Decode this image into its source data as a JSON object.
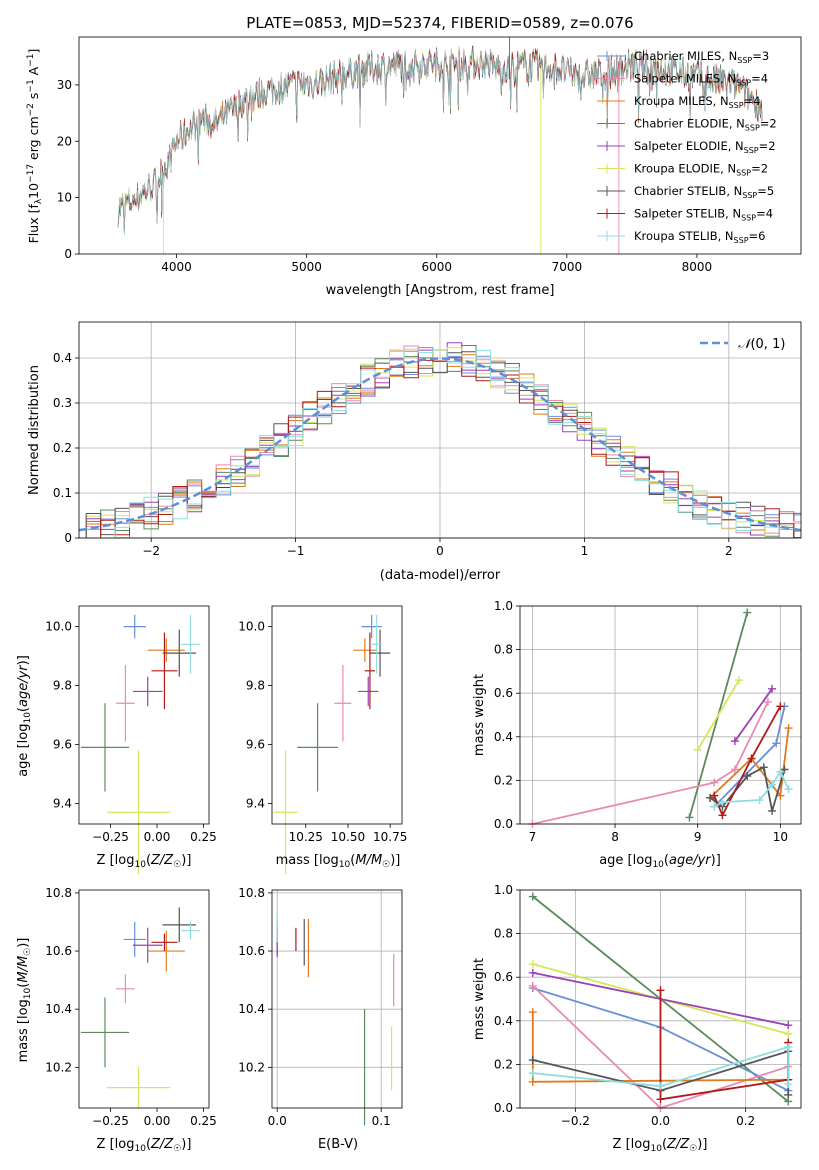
{
  "figure": {
    "title": "PLATE=0853, MJD=52374, FIBERID=0589, z=0.076"
  },
  "colors": {
    "chabrier_miles": "#6a8fd8",
    "salpeter_miles": "#e98ab0",
    "kroupa_miles": "#e07a1f",
    "chabrier_elodie": "#5b8a5b",
    "salpeter_elodie": "#9d3fb5",
    "kroupa_elodie": "#d4e65a",
    "chabrier_stelib": "#555555",
    "salpeter_stelib": "#b01a1a",
    "kroupa_stelib": "#8fdde0",
    "normal": "#5b8fd8"
  },
  "chart_data": [
    {
      "type": "line",
      "title": "PLATE=0853, MJD=52374, FIBERID=0589, z=0.076",
      "xlabel": "wavelength [Angstrom, rest frame]",
      "ylabel": "Flux [f_λ 10^-17 erg cm^-2 s^-1 A^-1]",
      "xlim": [
        3250,
        8800
      ],
      "ylim": [
        0,
        38.5
      ],
      "xticks": [
        4000,
        5000,
        6000,
        7000,
        8000
      ],
      "yticks": [
        0,
        10,
        20,
        30
      ],
      "legend_position": "top-right",
      "legend": [
        {
          "name": "Chabrier MILES",
          "nssp": "3",
          "color_key": "chabrier_miles"
        },
        {
          "name": "Salpeter MILES",
          "nssp": "4",
          "color_key": "salpeter_miles"
        },
        {
          "name": "Kroupa MILES",
          "nssp": "4",
          "color_key": "kroupa_miles"
        },
        {
          "name": "Chabrier ELODIE",
          "nssp": "2",
          "color_key": "chabrier_elodie"
        },
        {
          "name": "Salpeter ELODIE",
          "nssp": "2",
          "color_key": "salpeter_elodie"
        },
        {
          "name": "Kroupa ELODIE",
          "nssp": "2",
          "color_key": "kroupa_elodie"
        },
        {
          "name": "Chabrier STELIB",
          "nssp": "5",
          "color_key": "chabrier_stelib"
        },
        {
          "name": "Salpeter STELIB",
          "nssp": "4",
          "color_key": "salpeter_stelib"
        },
        {
          "name": "Kroupa STELIB",
          "nssp": "6",
          "color_key": "kroupa_stelib"
        }
      ],
      "continuum": [
        [
          3550,
          8
        ],
        [
          3700,
          10
        ],
        [
          3850,
          13
        ],
        [
          3950,
          17
        ],
        [
          4000,
          20
        ],
        [
          4100,
          22
        ],
        [
          4200,
          24
        ],
        [
          4300,
          23
        ],
        [
          4500,
          27
        ],
        [
          4700,
          29
        ],
        [
          4900,
          30
        ],
        [
          5100,
          30.5
        ],
        [
          5300,
          32
        ],
        [
          5500,
          33
        ],
        [
          5700,
          33.5
        ],
        [
          5900,
          34
        ],
        [
          6100,
          33.5
        ],
        [
          6300,
          34
        ],
        [
          6500,
          33
        ],
        [
          6700,
          33.5
        ],
        [
          6900,
          33
        ],
        [
          7100,
          31.5
        ],
        [
          7300,
          32
        ],
        [
          7500,
          33.5
        ],
        [
          7700,
          33
        ],
        [
          7900,
          32
        ],
        [
          8100,
          31
        ],
        [
          8300,
          30
        ],
        [
          8500,
          26
        ]
      ]
    },
    {
      "type": "line",
      "xlabel": "(data-model)/error",
      "ylabel": "Normed distribution",
      "xlim": [
        -2.5,
        2.5
      ],
      "ylim": [
        0,
        0.48
      ],
      "xticks": [
        -2,
        -1,
        0,
        1,
        2
      ],
      "yticks": [
        0.0,
        0.1,
        0.2,
        0.3,
        0.4
      ],
      "legend": "N(0, 1)",
      "legend_position": "top-right",
      "bin_width": 0.1
    },
    {
      "type": "scatter",
      "xlabel": "Z [log10(Z/Z☉)]",
      "ylabel": "age [log10(age/yr)]",
      "xlim": [
        -0.42,
        0.28
      ],
      "ylim": [
        9.33,
        10.07
      ],
      "xticks": [
        "−0.25",
        "0.00",
        "0.25"
      ],
      "yticks": [
        "9.4",
        "9.6",
        "9.8",
        "10.0"
      ],
      "points": [
        {
          "color": "chabrier_miles",
          "x": -0.12,
          "xerr": 0.06,
          "y": 10.0,
          "yerr": 0.04
        },
        {
          "color": "salpeter_miles",
          "x": -0.17,
          "xerr": 0.05,
          "y": 9.74,
          "yerr": 0.13
        },
        {
          "color": "kroupa_miles",
          "x": 0.05,
          "xerr": 0.1,
          "y": 9.92,
          "yerr": 0.04
        },
        {
          "color": "chabrier_elodie",
          "x": -0.28,
          "xerr": 0.13,
          "y": 9.59,
          "yerr": 0.15
        },
        {
          "color": "salpeter_elodie",
          "x": -0.05,
          "xerr": 0.08,
          "y": 9.78,
          "yerr": 0.05
        },
        {
          "color": "kroupa_elodie",
          "x": -0.1,
          "xerr": 0.17,
          "y": 9.37,
          "yerr": 0.21
        },
        {
          "color": "chabrier_stelib",
          "x": 0.12,
          "xerr": 0.09,
          "y": 9.91,
          "yerr": 0.08
        },
        {
          "color": "salpeter_stelib",
          "x": 0.04,
          "xerr": 0.07,
          "y": 9.85,
          "yerr": 0.13
        },
        {
          "color": "kroupa_stelib",
          "x": 0.18,
          "xerr": 0.05,
          "y": 9.94,
          "yerr": 0.1
        }
      ]
    },
    {
      "type": "scatter",
      "xlabel": "mass [log10(M/M☉)]",
      "xlim": [
        10.05,
        10.82
      ],
      "ylim": [
        9.33,
        10.07
      ],
      "xticks": [
        "10.25",
        "10.50",
        "10.75"
      ],
      "yticks": [
        "9.4",
        "9.6",
        "9.8",
        "10.0"
      ],
      "points": [
        {
          "color": "chabrier_miles",
          "x": 10.64,
          "xerr": 0.06,
          "y": 10.0,
          "yerr": 0.04
        },
        {
          "color": "salpeter_miles",
          "x": 10.47,
          "xerr": 0.05,
          "y": 9.74,
          "yerr": 0.13
        },
        {
          "color": "kroupa_miles",
          "x": 10.6,
          "xerr": 0.07,
          "y": 9.92,
          "yerr": 0.04
        },
        {
          "color": "chabrier_elodie",
          "x": 10.32,
          "xerr": 0.12,
          "y": 9.59,
          "yerr": 0.15
        },
        {
          "color": "salpeter_elodie",
          "x": 10.62,
          "xerr": 0.06,
          "y": 9.78,
          "yerr": 0.05
        },
        {
          "color": "kroupa_elodie",
          "x": 10.13,
          "xerr": 0.07,
          "y": 9.37,
          "yerr": 0.21
        },
        {
          "color": "chabrier_stelib",
          "x": 10.69,
          "xerr": 0.06,
          "y": 9.91,
          "yerr": 0.08
        },
        {
          "color": "salpeter_stelib",
          "x": 10.63,
          "xerr": 0.03,
          "y": 9.85,
          "yerr": 0.13
        },
        {
          "color": "kroupa_stelib",
          "x": 10.67,
          "xerr": 0.03,
          "y": 9.94,
          "yerr": 0.1
        }
      ]
    },
    {
      "type": "line",
      "xlabel": "age [log10(age/yr)]",
      "ylabel": "mass weight",
      "xlim": [
        6.85,
        10.25
      ],
      "ylim": [
        0,
        1.0
      ],
      "xticks": [
        7,
        8,
        9,
        10
      ],
      "yticks": [
        "0.0",
        "0.2",
        "0.4",
        "0.6",
        "0.8",
        "1.0"
      ],
      "series": [
        {
          "color": "chabrier_elodie",
          "x": [
            8.9,
            9.6
          ],
          "y": [
            0.03,
            0.97
          ]
        },
        {
          "color": "kroupa_elodie",
          "x": [
            9.0,
            9.5
          ],
          "y": [
            0.34,
            0.66
          ]
        },
        {
          "color": "salpeter_elodie",
          "x": [
            9.45,
            9.9
          ],
          "y": [
            0.38,
            0.62
          ]
        },
        {
          "color": "salpeter_miles",
          "x": [
            7.0,
            9.2,
            9.45,
            9.85
          ],
          "y": [
            0.0,
            0.19,
            0.25,
            0.56
          ]
        },
        {
          "color": "chabrier_miles",
          "x": [
            9.2,
            9.95,
            10.05
          ],
          "y": [
            0.08,
            0.37,
            0.54
          ]
        },
        {
          "color": "kroupa_miles",
          "x": [
            9.15,
            9.65,
            10.0,
            10.1
          ],
          "y": [
            0.12,
            0.3,
            0.13,
            0.44
          ]
        },
        {
          "color": "chabrier_stelib",
          "x": [
            9.15,
            9.3,
            9.6,
            9.8,
            9.9,
            10.05
          ],
          "y": [
            0.12,
            0.08,
            0.22,
            0.26,
            0.06,
            0.25
          ]
        },
        {
          "color": "salpeter_stelib",
          "x": [
            9.2,
            9.3,
            9.65,
            10.0
          ],
          "y": [
            0.13,
            0.04,
            0.3,
            0.54
          ]
        },
        {
          "color": "kroupa_stelib",
          "x": [
            9.2,
            9.3,
            9.75,
            9.9,
            10.0,
            10.1
          ],
          "y": [
            0.08,
            0.1,
            0.11,
            0.18,
            0.24,
            0.16
          ]
        }
      ]
    },
    {
      "type": "scatter",
      "xlabel": "Z [log10(Z/Z☉)]",
      "ylabel": "mass [log10(M/M☉)]",
      "xlim": [
        -0.42,
        0.28
      ],
      "ylim": [
        10.06,
        10.81
      ],
      "xticks": [
        "−0.25",
        "0.00",
        "0.25"
      ],
      "yticks": [
        "10.2",
        "10.4",
        "10.6",
        "10.8"
      ],
      "points": [
        {
          "color": "chabrier_miles",
          "x": -0.12,
          "xerr": 0.06,
          "y": 10.64,
          "yerr": 0.06
        },
        {
          "color": "salpeter_miles",
          "x": -0.17,
          "xerr": 0.05,
          "y": 10.47,
          "yerr": 0.05
        },
        {
          "color": "kroupa_miles",
          "x": 0.05,
          "xerr": 0.1,
          "y": 10.6,
          "yerr": 0.07
        },
        {
          "color": "chabrier_elodie",
          "x": -0.28,
          "xerr": 0.13,
          "y": 10.32,
          "yerr": 0.12
        },
        {
          "color": "salpeter_elodie",
          "x": -0.05,
          "xerr": 0.08,
          "y": 10.62,
          "yerr": 0.06
        },
        {
          "color": "kroupa_elodie",
          "x": -0.1,
          "xerr": 0.17,
          "y": 10.13,
          "yerr": 0.07
        },
        {
          "color": "chabrier_stelib",
          "x": 0.12,
          "xerr": 0.09,
          "y": 10.69,
          "yerr": 0.06
        },
        {
          "color": "salpeter_stelib",
          "x": 0.04,
          "xerr": 0.07,
          "y": 10.63,
          "yerr": 0.03
        },
        {
          "color": "kroupa_stelib",
          "x": 0.18,
          "xerr": 0.05,
          "y": 10.67,
          "yerr": 0.03
        }
      ]
    },
    {
      "type": "scatter",
      "xlabel": "E(B-V)",
      "xlim": [
        -0.005,
        0.12
      ],
      "ylim": [
        10.06,
        10.81
      ],
      "xticks": [
        "0.0",
        "0.1"
      ],
      "yticks": [
        "10.2",
        "10.4",
        "10.6",
        "10.8"
      ],
      "points": [
        {
          "color": "chabrier_miles",
          "x": 0.0,
          "xerr": 0,
          "y": 10.64,
          "yerr": 0.06
        },
        {
          "color": "salpeter_miles",
          "x": 0.112,
          "xerr": 0,
          "y": 10.5,
          "yerr": 0.09
        },
        {
          "color": "kroupa_miles",
          "x": 0.03,
          "xerr": 0,
          "y": 10.61,
          "yerr": 0.1
        },
        {
          "color": "chabrier_elodie",
          "x": 0.084,
          "xerr": 0,
          "y": 10.2,
          "yerr": 0.2
        },
        {
          "color": "salpeter_elodie",
          "x": 0.0,
          "xerr": 0,
          "y": 10.63,
          "yerr": 0.05
        },
        {
          "color": "kroupa_elodie",
          "x": 0.11,
          "xerr": 0,
          "y": 10.23,
          "yerr": 0.11
        },
        {
          "color": "chabrier_stelib",
          "x": 0.026,
          "xerr": 0,
          "y": 10.63,
          "yerr": 0.08
        },
        {
          "color": "salpeter_stelib",
          "x": 0.018,
          "xerr": 0,
          "y": 10.64,
          "yerr": 0.04
        },
        {
          "color": "kroupa_stelib",
          "x": 0.0,
          "xerr": 0,
          "y": 10.68,
          "yerr": 0.05
        }
      ]
    },
    {
      "type": "line",
      "xlabel": "Z [log10(Z/Z☉)]",
      "ylabel": "mass weight",
      "xlim": [
        -0.33,
        0.33
      ],
      "ylim": [
        0,
        1.0
      ],
      "xticks": [
        "−0.2",
        "0.0",
        "0.2"
      ],
      "yticks": [
        "0.0",
        "0.2",
        "0.4",
        "0.6",
        "0.8",
        "1.0"
      ],
      "series": [
        {
          "color": "chabrier_elodie",
          "x": [
            -0.3,
            0.3
          ],
          "y": [
            0.97,
            0.03
          ]
        },
        {
          "color": "kroupa_elodie",
          "x": [
            -0.3,
            0.3
          ],
          "y": [
            0.66,
            0.34
          ]
        },
        {
          "color": "salpeter_elodie",
          "x": [
            -0.3,
            0.3
          ],
          "y": [
            0.62,
            0.38
          ]
        },
        {
          "color": "chabrier_miles",
          "x": [
            -0.3,
            0.0,
            0.3
          ],
          "y": [
            0.55,
            0.37,
            0.08
          ]
        },
        {
          "color": "salpeter_miles",
          "x": [
            -0.3,
            0.0,
            0.3
          ],
          "y": [
            0.56,
            0.0,
            0.19
          ]
        },
        {
          "color": "kroupa_miles",
          "x": [
            -0.3,
            -0.3,
            0.3,
            0.3
          ],
          "y": [
            0.44,
            0.12,
            0.13,
            0.3
          ]
        },
        {
          "color": "chabrier_stelib",
          "x": [
            -0.3,
            0.0,
            0.3,
            0.3
          ],
          "y": [
            0.22,
            0.08,
            0.26,
            0.06
          ]
        },
        {
          "color": "salpeter_stelib",
          "x": [
            0.0,
            0.0,
            0.3,
            0.3
          ],
          "y": [
            0.54,
            0.04,
            0.13,
            0.3
          ]
        },
        {
          "color": "kroupa_stelib",
          "x": [
            -0.3,
            0.0,
            0.3,
            0.3
          ],
          "y": [
            0.16,
            0.1,
            0.28,
            0.11
          ]
        }
      ]
    }
  ]
}
